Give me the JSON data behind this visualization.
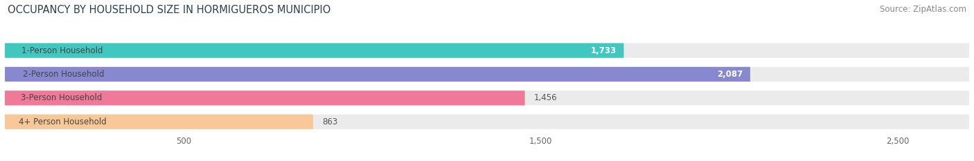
{
  "title": "OCCUPANCY BY HOUSEHOLD SIZE IN HORMIGUEROS MUNICIPIO",
  "source": "Source: ZipAtlas.com",
  "categories": [
    "1-Person Household",
    "2-Person Household",
    "3-Person Household",
    "4+ Person Household"
  ],
  "values": [
    1733,
    2087,
    1456,
    863
  ],
  "bar_colors": [
    "#40c8c0",
    "#8888d0",
    "#f07898",
    "#f8c898"
  ],
  "bar_bg_color": "#ebebeb",
  "value_labels": [
    "1,733",
    "2,087",
    "1,456",
    "863"
  ],
  "value_label_inside": [
    true,
    true,
    false,
    false
  ],
  "xlim_max": 2700,
  "xticks": [
    500,
    1500,
    2500
  ],
  "xtick_labels": [
    "500",
    "1,500",
    "2,500"
  ],
  "title_fontsize": 10.5,
  "source_fontsize": 8.5,
  "label_fontsize": 8.5,
  "value_fontsize": 8.5,
  "bg_color": "#ffffff",
  "label_text_color": "#444444",
  "value_inside_color": "#ffffff",
  "value_outside_color": "#555555"
}
